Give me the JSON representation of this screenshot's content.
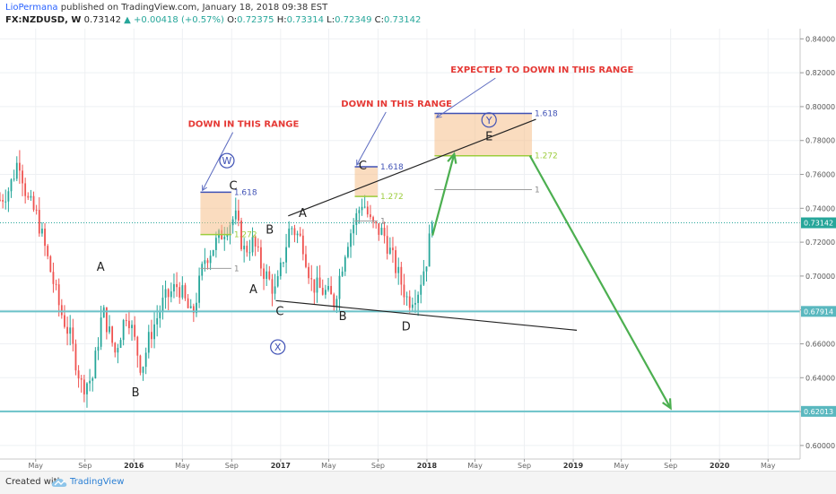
{
  "header": {
    "author": "LioPermana",
    "published": "published on TradingView.com, January 18, 2018 09:38 EST",
    "symbol": "FX:NZDUSD, W",
    "last": "0.73142",
    "arrow": "▲",
    "change": "+0.00418 (+0.57%)",
    "open_label": "O:",
    "open": "0.72375",
    "high_label": "H:",
    "high": "0.73314",
    "low_label": "L:",
    "low": "0.72349",
    "close_label": "C:",
    "close": "0.73142"
  },
  "footer": {
    "created_with": "Created with",
    "brand": "TradingView",
    "logo_icon": "tradingview-cloud-icon"
  },
  "colors": {
    "bull": "#26a69a",
    "bear": "#ef5350",
    "trend_green": "#4caf50",
    "label_red": "#e53935",
    "fib_blue": "#3f51b5",
    "fib_green": "#9ccc3c",
    "box_fill": "#f5c08a",
    "support_line": "#6bc3c9"
  },
  "chart_data": {
    "type": "candlestick",
    "symbol": "FX:NZDUSD",
    "timeframe": "W",
    "y_ticks": [
      0.6,
      0.62,
      0.64,
      0.66,
      0.68,
      0.7,
      0.72,
      0.74,
      0.76,
      0.78,
      0.8,
      0.82,
      0.84
    ],
    "y_tick_labels": [
      "0.60000",
      "0.62000",
      "0.64000",
      "0.66000",
      "0.68000",
      "0.70000",
      "0.72000",
      "0.74000",
      "0.76000",
      "0.78000",
      "0.80000",
      "0.82000",
      "0.84000"
    ],
    "ylim": [
      0.592,
      0.846
    ],
    "x_start": "2015-02-01",
    "x_end": "2020-07-20",
    "x_ticks": [
      {
        "date": "2015-05-01",
        "label": "May"
      },
      {
        "date": "2015-09-01",
        "label": "Sep"
      },
      {
        "date": "2016-01-01",
        "label": "2016"
      },
      {
        "date": "2016-05-01",
        "label": "May"
      },
      {
        "date": "2016-09-01",
        "label": "Sep"
      },
      {
        "date": "2017-01-01",
        "label": "2017"
      },
      {
        "date": "2017-05-01",
        "label": "May"
      },
      {
        "date": "2017-09-01",
        "label": "Sep"
      },
      {
        "date": "2018-01-01",
        "label": "2018"
      },
      {
        "date": "2018-05-01",
        "label": "May"
      },
      {
        "date": "2018-09-01",
        "label": "Sep"
      },
      {
        "date": "2019-01-01",
        "label": "2019"
      },
      {
        "date": "2019-05-01",
        "label": "May"
      },
      {
        "date": "2019-09-01",
        "label": "Sep"
      },
      {
        "date": "2020-01-01",
        "label": "2020"
      },
      {
        "date": "2020-05-01",
        "label": "May"
      }
    ],
    "price_path": [
      [
        "2015-02-01",
        0.745
      ],
      [
        "2015-02-25",
        0.752
      ],
      [
        "2015-03-20",
        0.77
      ],
      [
        "2015-04-10",
        0.745
      ],
      [
        "2015-05-05",
        0.735
      ],
      [
        "2015-06-05",
        0.705
      ],
      [
        "2015-07-01",
        0.68
      ],
      [
        "2015-07-25",
        0.665
      ],
      [
        "2015-08-24",
        0.635
      ],
      [
        "2015-09-20",
        0.64
      ],
      [
        "2015-10-15",
        0.68
      ],
      [
        "2015-11-15",
        0.655
      ],
      [
        "2015-12-15",
        0.68
      ],
      [
        "2016-01-20",
        0.645
      ],
      [
        "2016-02-10",
        0.665
      ],
      [
        "2016-03-15",
        0.685
      ],
      [
        "2016-04-20",
        0.695
      ],
      [
        "2016-05-25",
        0.675
      ],
      [
        "2016-06-25",
        0.71
      ],
      [
        "2016-07-25",
        0.72
      ],
      [
        "2016-08-20",
        0.73
      ],
      [
        "2016-09-10",
        0.735
      ],
      [
        "2016-10-01",
        0.715
      ],
      [
        "2016-10-25",
        0.72
      ],
      [
        "2016-11-15",
        0.705
      ],
      [
        "2016-12-20",
        0.69
      ],
      [
        "2017-01-25",
        0.73
      ],
      [
        "2017-02-25",
        0.72
      ],
      [
        "2017-03-20",
        0.695
      ],
      [
        "2017-04-25",
        0.69
      ],
      [
        "2017-05-15",
        0.685
      ],
      [
        "2017-06-15",
        0.72
      ],
      [
        "2017-07-25",
        0.745
      ],
      [
        "2017-08-15",
        0.73
      ],
      [
        "2017-09-15",
        0.725
      ],
      [
        "2017-10-15",
        0.705
      ],
      [
        "2017-11-15",
        0.685
      ],
      [
        "2017-12-10",
        0.692
      ],
      [
        "2017-12-31",
        0.71
      ],
      [
        "2018-01-14",
        0.7314
      ]
    ],
    "labeled_pivots": [
      {
        "label": "A",
        "date": "2015-10-10",
        "value": 0.703
      },
      {
        "label": "B",
        "date": "2016-01-05",
        "value": 0.629
      },
      {
        "label": "C",
        "date": "2016-09-05",
        "value": 0.751
      },
      {
        "label": "W",
        "date": "2016-08-20",
        "value": 0.766,
        "circled": true
      },
      {
        "label": "A",
        "date": "2016-10-25",
        "value": 0.69
      },
      {
        "label": "X",
        "date": "2016-12-25",
        "value": 0.656,
        "circled": true
      },
      {
        "label": "B",
        "date": "2016-12-05",
        "value": 0.725
      },
      {
        "label": "C",
        "date": "2016-12-30",
        "value": 0.677
      },
      {
        "label": "A",
        "date": "2017-02-25",
        "value": 0.735
      },
      {
        "label": "B",
        "date": "2017-06-05",
        "value": 0.674
      },
      {
        "label": "C",
        "date": "2017-07-25",
        "value": 0.763
      },
      {
        "label": "D",
        "date": "2017-11-10",
        "value": 0.668
      },
      {
        "label": "E",
        "date": "2018-06-05",
        "value": 0.78
      },
      {
        "label": "Y",
        "date": "2018-06-05",
        "value": 0.79,
        "circled": true
      }
    ],
    "fib_boxes": [
      {
        "start": "2016-06-15",
        "end": "2016-08-31",
        "top": 0.7495,
        "bottom": 0.7245,
        "level_1618": "1.618",
        "level_1272": "1.272",
        "level_1": "1",
        "level_1_value": 0.7045
      },
      {
        "start": "2017-07-05",
        "end": "2017-08-31",
        "top": 0.7645,
        "bottom": 0.747,
        "level_1618": "1.618",
        "level_1272": "1.272",
        "level_1": "1",
        "level_1_value": 0.7325
      },
      {
        "start": "2018-01-20",
        "end": "2018-09-20",
        "top": 0.796,
        "bottom": 0.771,
        "level_1618": "1.618",
        "level_1272": "1.272",
        "level_1": "1",
        "level_1_value": 0.751
      }
    ],
    "trendlines": [
      {
        "from": [
          "2017-01-20",
          0.7355
        ],
        "to": [
          "2018-09-30",
          0.7925
        ],
        "color": "#222222"
      },
      {
        "from": [
          "2016-12-20",
          0.6855
        ],
        "to": [
          "2019-01-10",
          0.668
        ],
        "color": "#222222"
      }
    ],
    "projection_arrows": [
      {
        "from": [
          "2018-01-15",
          0.724
        ],
        "to": [
          "2018-03-10",
          0.772
        ]
      },
      {
        "from": [
          "2018-09-15",
          0.771
        ],
        "to": [
          "2019-09-01",
          0.622
        ]
      }
    ],
    "horizontal_levels": [
      {
        "value": 0.67914,
        "label": "0.67914"
      },
      {
        "value": 0.62013,
        "label": "0.62013"
      }
    ],
    "current_price": {
      "value": 0.73142,
      "label": "0.73142"
    },
    "annotations": [
      {
        "text": "DOWN IN THIS RANGE",
        "date": "2016-05-15",
        "value": 0.788,
        "arrow_to": [
          "2016-06-20",
          0.7495
        ]
      },
      {
        "text": "DOWN IN THIS RANGE",
        "date": "2017-06-01",
        "value": 0.8,
        "arrow_to": [
          "2017-07-10",
          0.7645
        ]
      },
      {
        "text": "EXPECTED TO DOWN IN THIS RANGE",
        "date": "2018-03-01",
        "value": 0.82,
        "arrow_to": [
          "2018-01-25",
          0.7925
        ]
      }
    ]
  }
}
